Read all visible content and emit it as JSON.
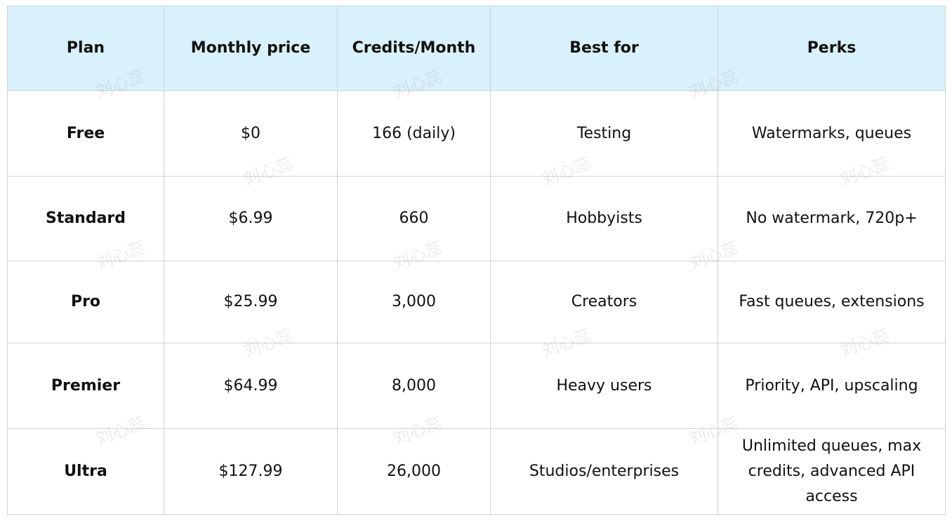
{
  "table": {
    "header": [
      "Plan",
      "Monthly price",
      "Credits/Month",
      "Best for",
      "Perks"
    ],
    "rows": [
      [
        "Free",
        "$0",
        "166 (daily)",
        "Testing",
        "Watermarks, queues"
      ],
      [
        "Standard",
        "$6.99",
        "660",
        "Hobbyists",
        "No watermark, 720p+"
      ],
      [
        "Pro",
        "$25.99",
        "3,000",
        "Creators",
        "Fast queues, extensions"
      ],
      [
        "Premier",
        "$64.99",
        "8,000",
        "Heavy users",
        "Priority, API, upscaling"
      ],
      [
        "Ultra",
        "$127.99",
        "26,000",
        "Studios/enterprises",
        "Unlimited queues, max credits, advanced API access"
      ]
    ]
  },
  "watermark": "刘心蕊"
}
